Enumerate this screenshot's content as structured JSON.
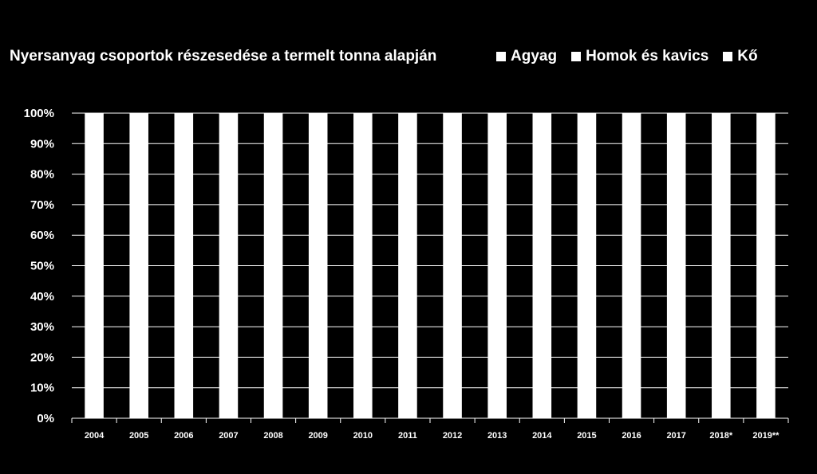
{
  "chart_data": {
    "type": "bar",
    "stacked": true,
    "title": "Nyersanyag csoportok részesedése a termelt tonna alapján",
    "categories": [
      "2004",
      "2005",
      "2006",
      "2007",
      "2008",
      "2009",
      "2010",
      "2011",
      "2012",
      "2013",
      "2014",
      "2015",
      "2016",
      "2017",
      "2018*",
      "2019**"
    ],
    "series": [
      {
        "name": "Agyag",
        "color": "#ffffff",
        "values": [
          null,
          null,
          null,
          null,
          null,
          null,
          null,
          null,
          null,
          null,
          null,
          null,
          null,
          null,
          null,
          null
        ]
      },
      {
        "name": "Homok és kavics",
        "color": "#ffffff",
        "values": [
          null,
          null,
          null,
          null,
          null,
          null,
          null,
          null,
          null,
          null,
          null,
          null,
          null,
          null,
          null,
          null
        ]
      },
      {
        "name": "Kő",
        "color": "#ffffff",
        "values": [
          null,
          null,
          null,
          null,
          null,
          null,
          null,
          null,
          null,
          null,
          null,
          null,
          null,
          null,
          null,
          null
        ]
      }
    ],
    "total_per_bar": 100,
    "ylim": [
      0,
      100
    ],
    "yticks": [
      "0%",
      "10%",
      "20%",
      "30%",
      "40%",
      "50%",
      "60%",
      "70%",
      "80%",
      "90%",
      "100%"
    ],
    "grid": true,
    "legend_position": "top-right",
    "background": "#000000",
    "foreground": "#ffffff"
  }
}
